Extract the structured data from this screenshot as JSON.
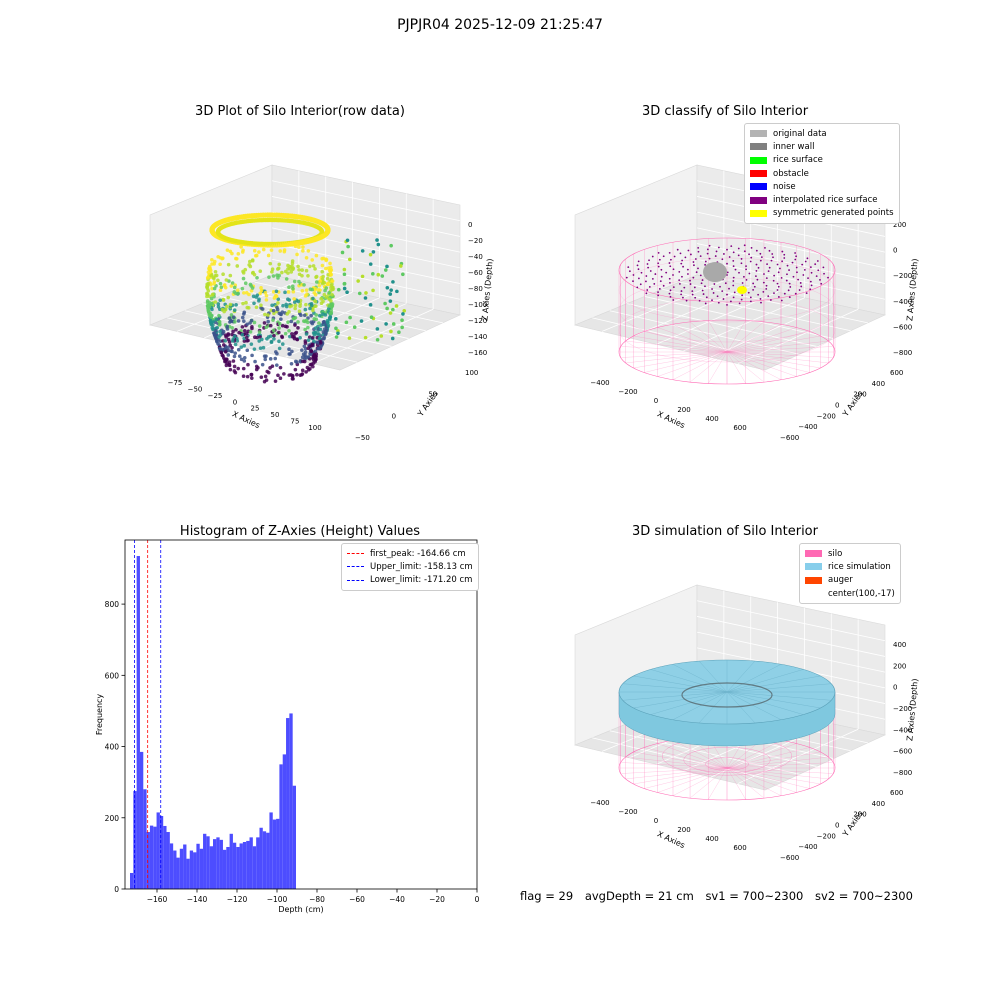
{
  "figure": {
    "suptitle": "PJPJR04 2025-12-09 21:25:47",
    "footer": {
      "flag": "flag = 29",
      "avg_depth": "avgDepth = 21 cm",
      "sv1": "sv1 = 700~2300",
      "sv2": "sv2 = 700~2300"
    }
  },
  "chart_data": [
    {
      "type": "scatter",
      "title": "3D Plot of Silo Interior(row data)",
      "xlabel": "X Axies",
      "ylabel": "Y Axies",
      "zlabel": "Z Axies (Depth)",
      "xticks": [
        "−75",
        "−50",
        "−25",
        "0",
        "25",
        "50",
        "75",
        "100"
      ],
      "yticks": [
        "−50",
        "0",
        "50",
        "100"
      ],
      "zticks": [
        "0",
        "−20",
        "−40",
        "−60",
        "−80",
        "−100",
        "−120",
        "−140",
        "−160"
      ],
      "colormap": "viridis",
      "note_data": "3D point cloud of silo interior; depth range approx 0 to −170"
    },
    {
      "type": "scatter",
      "title": "3D classify of Silo Interior",
      "xlabel": "X Axies",
      "ylabel": "Y Axies",
      "zlabel": "Z Axies (Depth)",
      "xticks": [
        "−400",
        "−200",
        "0",
        "200",
        "400",
        "600"
      ],
      "yticks": [
        "−600",
        "−400",
        "−200",
        "0",
        "200",
        "400",
        "600"
      ],
      "zticks": [
        "200",
        "0",
        "−200",
        "−400",
        "−600",
        "−800"
      ],
      "legend": [
        {
          "label": "original data",
          "color": "#b3b3b3"
        },
        {
          "label": "inner wall",
          "color": "#808080"
        },
        {
          "label": "rice surface",
          "color": "#00ff00"
        },
        {
          "label": "obstacle",
          "color": "#ff0000"
        },
        {
          "label": "noise",
          "color": "#0000ff"
        },
        {
          "label": "interpolated rice surface",
          "color": "#800080"
        },
        {
          "label": "symmetric generated points",
          "color": "#ffff00"
        }
      ],
      "legend_position": "top-right"
    },
    {
      "type": "bar",
      "title": "Histogram of Z-Axies (Height) Values",
      "xlabel": "Depth (cm)",
      "ylabel": "Frequency",
      "xlim": [
        -176,
        0
      ],
      "ylim": [
        0,
        980
      ],
      "bar_color": "#4d4dff",
      "xticks": [
        {
          "v": -160,
          "label": "−160"
        },
        {
          "v": -140,
          "label": "−140"
        },
        {
          "v": -120,
          "label": "−120"
        },
        {
          "v": -100,
          "label": "−100"
        },
        {
          "v": -80,
          "label": "−80"
        },
        {
          "v": -60,
          "label": "−60"
        },
        {
          "v": -40,
          "label": "−40"
        },
        {
          "v": -20,
          "label": "−20"
        },
        {
          "v": 0,
          "label": "0"
        }
      ],
      "yticks": [
        {
          "v": 0,
          "label": "0"
        },
        {
          "v": 200,
          "label": "200"
        },
        {
          "v": 400,
          "label": "400"
        },
        {
          "v": 600,
          "label": "600"
        },
        {
          "v": 800,
          "label": "800"
        }
      ],
      "bin_start": -173.5,
      "bin_width": 1.66,
      "values": [
        45,
        275,
        935,
        385,
        280,
        160,
        178,
        175,
        215,
        205,
        177,
        160,
        128,
        108,
        88,
        113,
        125,
        85,
        108,
        103,
        127,
        113,
        155,
        148,
        120,
        140,
        145,
        138,
        110,
        118,
        155,
        130,
        118,
        128,
        132,
        135,
        145,
        120,
        145,
        172,
        162,
        158,
        215,
        195,
        197,
        350,
        378,
        480,
        493,
        290
      ],
      "vlines": [
        {
          "x": -164.66,
          "color": "#ff0000",
          "label": "first_peak: -164.66 cm"
        },
        {
          "x": -158.13,
          "color": "#0000ff",
          "label": "Upper_limit: -158.13 cm"
        },
        {
          "x": -171.2,
          "color": "#0000ff",
          "label": "Lower_limit: -171.20 cm"
        }
      ],
      "legend_position": "top-right"
    },
    {
      "type": "surface",
      "title": "3D simulation of Silo Interior",
      "xlabel": "X Axies",
      "ylabel": "Y Axies",
      "zlabel": "Z Axies (Depth)",
      "xticks": [
        "−400",
        "−200",
        "0",
        "200",
        "400",
        "600"
      ],
      "yticks": [
        "−600",
        "−400",
        "−200",
        "0",
        "200",
        "400",
        "600"
      ],
      "zticks": [
        "400",
        "200",
        "0",
        "−200",
        "−400",
        "−600",
        "−800"
      ],
      "legend": [
        {
          "label": "silo",
          "color": "#ff69b4"
        },
        {
          "label": "rice simulation",
          "color": "#87ceeb"
        },
        {
          "label": "auger",
          "color": "#ff4500"
        },
        {
          "label": "center(100,-17)",
          "color": ""
        }
      ],
      "legend_position": "top-right"
    }
  ]
}
